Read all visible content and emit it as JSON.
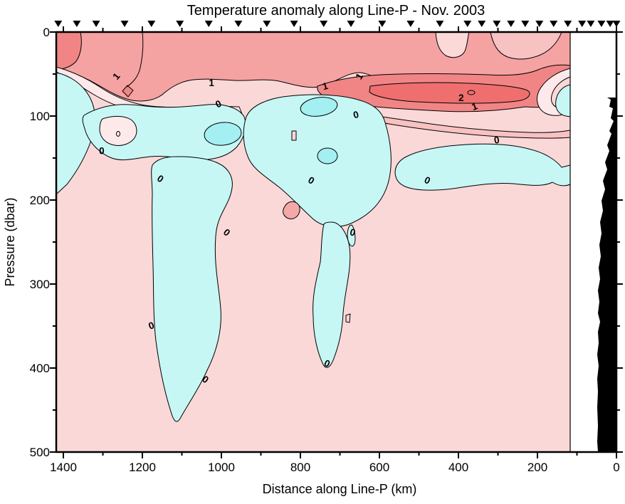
{
  "page": {
    "background": "#ffffff"
  },
  "chart_data": {
    "type": "heatmap",
    "variant": "filled-contour-ocean-section",
    "title": "Temperature anomaly along Line-P - Nov. 2003",
    "xlabel": "Distance along Line-P (km)",
    "ylabel": "Pressure (dbar)",
    "xlim": [
      1418,
      0
    ],
    "x_axis_reversed": true,
    "ylim": [
      0,
      500
    ],
    "y_axis_inverted": true,
    "x_major_ticks": [
      1400,
      1200,
      1000,
      800,
      600,
      400,
      200,
      0
    ],
    "x_minor_step": 100,
    "y_major_ticks": [
      0,
      100,
      200,
      300,
      400,
      500
    ],
    "y_minor_step": 50,
    "units": "degC anomaly",
    "contour_interval": 0.5,
    "labeled_levels": [
      0,
      1,
      2
    ],
    "palette": {
      "background_positive_0_05": "#FBD8D8",
      "near_zero_pale": "#FDE9E9",
      "positive_05_1": "#F8C2C2",
      "positive_1_15_salmon": "#F5A2A2",
      "positive_15_2_red": "#F18585",
      "positive_gt2_core": "#EF6F6F",
      "negative_light_cyan": "#C6F7F5",
      "negative_dark_cyan": "#A4EFF1",
      "pale_notch": "#FBD9D9",
      "salmon_spot": "#F5A8A8",
      "bathymetry_black": "#000000",
      "contour_line": "#000000"
    },
    "station_markers_km": [
      1413,
      1366,
      1317,
      1245,
      1177,
      1105,
      1032,
      957,
      885,
      816,
      741,
      672,
      593,
      521,
      447,
      377,
      341,
      303,
      267,
      231,
      195,
      159,
      123,
      87,
      65,
      38,
      16,
      0
    ],
    "contour_labels": [
      {
        "value": "1",
        "km": 1265,
        "dbar": 53,
        "rot": -50
      },
      {
        "value": "1",
        "km": 1025,
        "dbar": 61,
        "rot": 0
      },
      {
        "value": "1",
        "km": 737,
        "dbar": 65,
        "rot": -15
      },
      {
        "value": "1",
        "km": 650,
        "dbar": 53,
        "rot": -60
      },
      {
        "value": "2",
        "km": 393,
        "dbar": 79,
        "rot": 0
      },
      {
        "value": "1",
        "km": 359,
        "dbar": 89,
        "rot": -20
      },
      {
        "value": "0",
        "km": 1007,
        "dbar": 86,
        "rot": -25
      },
      {
        "value": "0",
        "km": 659,
        "dbar": 99,
        "rot": -15
      },
      {
        "value": "0",
        "km": 1303,
        "dbar": 142,
        "rot": 0
      },
      {
        "value": "0",
        "km": 1155,
        "dbar": 175,
        "rot": 35
      },
      {
        "value": "0",
        "km": 303,
        "dbar": 129,
        "rot": -10
      },
      {
        "value": "0",
        "km": 479,
        "dbar": 177,
        "rot": 25
      },
      {
        "value": "0",
        "km": 773,
        "dbar": 177,
        "rot": 30
      },
      {
        "value": "0",
        "km": 987,
        "dbar": 239,
        "rot": 40
      },
      {
        "value": "0",
        "km": 668,
        "dbar": 239,
        "rot": 15
      },
      {
        "value": "0",
        "km": 1177,
        "dbar": 350,
        "rot": -20
      },
      {
        "value": "0",
        "km": 1041,
        "dbar": 414,
        "rot": 35
      },
      {
        "value": "0",
        "km": 733,
        "dbar": 395,
        "rot": 25
      }
    ],
    "bathymetry": {
      "fill": "#000000",
      "km_extent": [
        0,
        47
      ],
      "min_dbar": 78
    },
    "features": [
      "Warm surface band (+1 to +2) over upper 50 dbar along whole section",
      "Intense warm core > +2 centered near 60-85 dbar between ~650 and ~300 km",
      "Negative anomaly layer near 80-180 dbar with cold tongues reaching ~480 dbar near 1100 km and ~400 dbar near 700 km",
      "Weak positive anomaly (0 to +0.5) fills the deep interior",
      "Black coastal bathymetry silhouette at distances < ~47 km"
    ]
  }
}
